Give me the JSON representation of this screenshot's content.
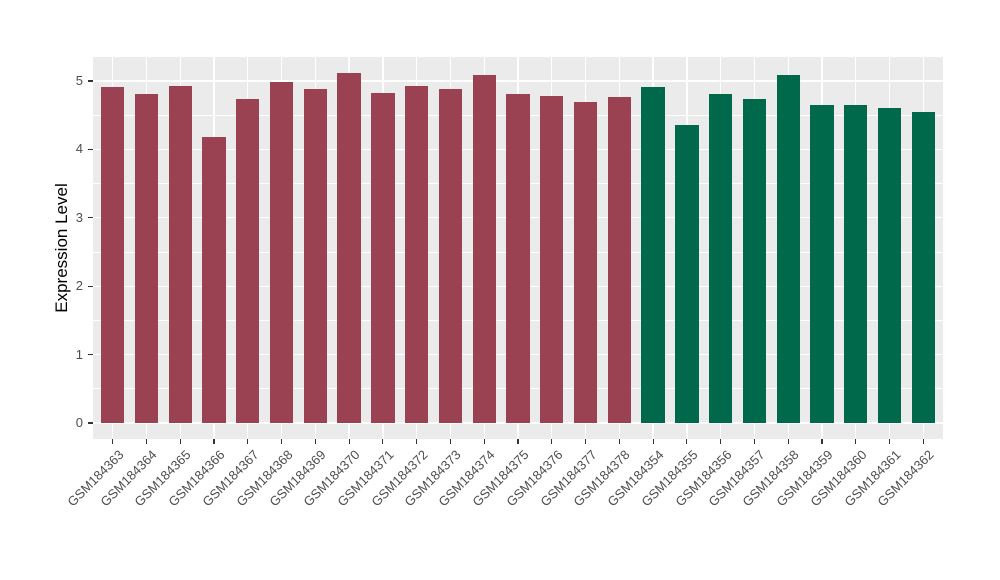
{
  "chart_data": {
    "type": "bar",
    "title": "",
    "xlabel": "",
    "ylabel": "Expression Level",
    "ylim": [
      0,
      5
    ],
    "y_displayed_max": 5.35,
    "y_ticks": [
      0,
      1,
      2,
      3,
      4,
      5
    ],
    "y_minor_ticks": [
      0.5,
      1.5,
      2.5,
      3.5,
      4.5
    ],
    "grid": "white major and minor horizontal lines plus vertical lines at each category, on gray panel",
    "legend_position": "none",
    "panel_background": "#EBEBEB",
    "grid_color": "#FFFFFF",
    "tick_color": "#333333",
    "tick_label_color": "#4D4D4D",
    "group_colors": {
      "group1": "#9B4252",
      "group2": "#00694B"
    },
    "bars": [
      {
        "label": "GSM184363",
        "value": 4.91,
        "group": "group1"
      },
      {
        "label": "GSM184364",
        "value": 4.81,
        "group": "group1"
      },
      {
        "label": "GSM184365",
        "value": 4.93,
        "group": "group1"
      },
      {
        "label": "GSM184366",
        "value": 4.18,
        "group": "group1"
      },
      {
        "label": "GSM184367",
        "value": 4.73,
        "group": "group1"
      },
      {
        "label": "GSM184368",
        "value": 4.99,
        "group": "group1"
      },
      {
        "label": "GSM184369",
        "value": 4.89,
        "group": "group1"
      },
      {
        "label": "GSM184370",
        "value": 5.11,
        "group": "group1"
      },
      {
        "label": "GSM184371",
        "value": 4.83,
        "group": "group1"
      },
      {
        "label": "GSM184372",
        "value": 4.92,
        "group": "group1"
      },
      {
        "label": "GSM184373",
        "value": 4.89,
        "group": "group1"
      },
      {
        "label": "GSM184374",
        "value": 5.09,
        "group": "group1"
      },
      {
        "label": "GSM184375",
        "value": 4.81,
        "group": "group1"
      },
      {
        "label": "GSM184376",
        "value": 4.78,
        "group": "group1"
      },
      {
        "label": "GSM184377",
        "value": 4.69,
        "group": "group1"
      },
      {
        "label": "GSM184378",
        "value": 4.76,
        "group": "group1"
      },
      {
        "label": "GSM184354",
        "value": 4.91,
        "group": "group2"
      },
      {
        "label": "GSM184355",
        "value": 4.35,
        "group": "group2"
      },
      {
        "label": "GSM184356",
        "value": 4.81,
        "group": "group2"
      },
      {
        "label": "GSM184357",
        "value": 4.73,
        "group": "group2"
      },
      {
        "label": "GSM184358",
        "value": 5.09,
        "group": "group2"
      },
      {
        "label": "GSM184359",
        "value": 4.65,
        "group": "group2"
      },
      {
        "label": "GSM184360",
        "value": 4.65,
        "group": "group2"
      },
      {
        "label": "GSM184361",
        "value": 4.61,
        "group": "group2"
      },
      {
        "label": "GSM184362",
        "value": 4.55,
        "group": "group2"
      }
    ]
  }
}
